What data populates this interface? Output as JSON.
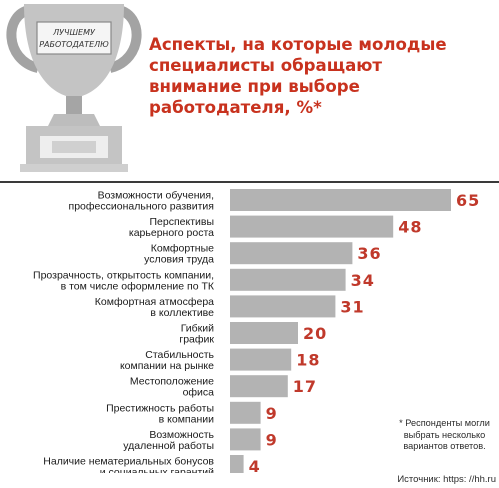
{
  "trophy": {
    "plate_label": "ЛУЧШЕМУ РАБОТОДАТЕЛЮ",
    "plate_lines": [
      "ЛУЧШЕМУ",
      "РАБОТОДАТЕЛЮ"
    ]
  },
  "title_lines": [
    "Аспекты, на которые молодые",
    "специалисты обращают",
    "внимание при выборе",
    "работодателя, %*"
  ],
  "footnote": "* Респонденты могли выбрать несколько вариантов ответов.",
  "source": "Источник: https: //hh.ru",
  "colors": {
    "bar": "#b3b3b3",
    "value_text": "#c0392b",
    "title": "#c8321e"
  },
  "chart_data": {
    "type": "bar",
    "orientation": "horizontal",
    "title": "Аспекты, на которые молодые специалисты обращают внимание при выборе работодателя, %*",
    "categories": [
      [
        "Возможности обучения,",
        "профессионального развития"
      ],
      [
        "Перспективы",
        "карьерного роста"
      ],
      [
        "Комфортные",
        "условия труда"
      ],
      [
        "Прозрачность, открытость компании,",
        "в том числе оформление по ТК"
      ],
      [
        "Комфортная атмосфера",
        "в коллективе"
      ],
      [
        "Гибкий",
        "график"
      ],
      [
        "Стабильность",
        "компании на рынке"
      ],
      [
        "Местоположение",
        "офиса"
      ],
      [
        "Престижность работы",
        "в компании"
      ],
      [
        "Возможность",
        "удаленной работы"
      ],
      [
        "Наличие нематериальных бонусов",
        "и социальных гарантий"
      ]
    ],
    "values": [
      65,
      48,
      36,
      34,
      31,
      20,
      18,
      17,
      9,
      9,
      4
    ],
    "xlim": [
      0,
      65
    ],
    "grid": false,
    "legend": "none"
  }
}
